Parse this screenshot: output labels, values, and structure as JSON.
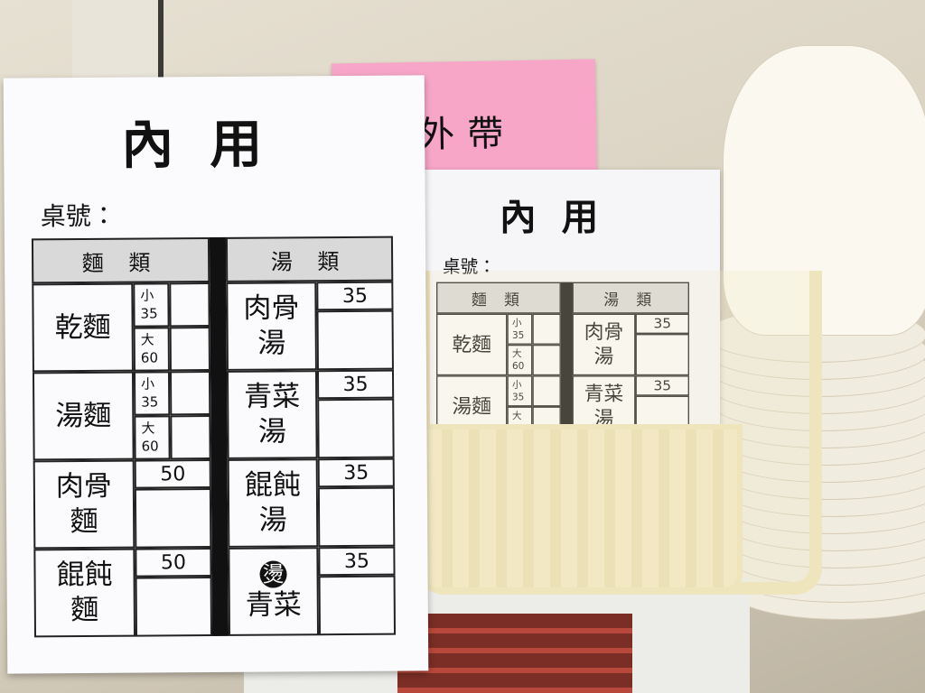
{
  "pink_sheet": {
    "title": "外帶"
  },
  "order_sheet": {
    "title": "內用",
    "table_label": "桌號：",
    "noodles": {
      "header": "麵 類",
      "items": [
        {
          "name": "乾麵",
          "sizes": [
            {
              "size": "小",
              "price": 35
            },
            {
              "size": "大",
              "price": 60
            }
          ]
        },
        {
          "name": "湯麵",
          "sizes": [
            {
              "size": "小",
              "price": 35
            },
            {
              "size": "大",
              "price": 60
            }
          ]
        },
        {
          "name": "肉骨麵",
          "price": 50
        },
        {
          "name": "餛飩麵",
          "price": 50
        }
      ]
    },
    "soups": {
      "header": "湯 類",
      "items": [
        {
          "name": "肉骨湯",
          "price": 35
        },
        {
          "name": "青菜湯",
          "price": 35
        },
        {
          "name": "餛飩湯",
          "price": 35
        },
        {
          "badge": "燙",
          "name": "青菜",
          "price": 35
        }
      ]
    }
  }
}
